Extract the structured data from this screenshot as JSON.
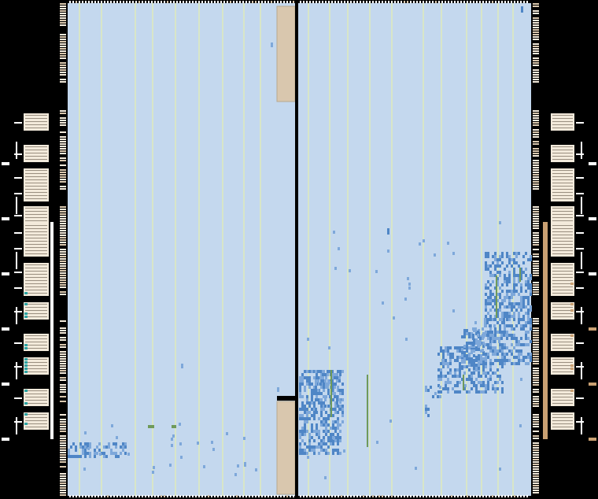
{
  "view": {
    "title": "",
    "colors": {
      "background": "#000000",
      "fabric": "#c4d8ee",
      "fabric_grid": "#d8e6c8",
      "tile_column": "#d9c7ae",
      "activity_dense": "#4f86c6",
      "activity_light": "#7ea8da",
      "route_green": "#6f9a5a",
      "io_bank": "#f3eadb",
      "io_tick": "#ffffff",
      "io_teal": "#2aa3a3",
      "io_tan": "#c9a072",
      "divider": "#000000"
    },
    "left_die": {
      "name": "",
      "activity_level": 0.04
    },
    "right_die": {
      "name": "",
      "activity_level": 0.22
    },
    "io_banks": {
      "left_count": 11,
      "right_count": 11
    }
  }
}
